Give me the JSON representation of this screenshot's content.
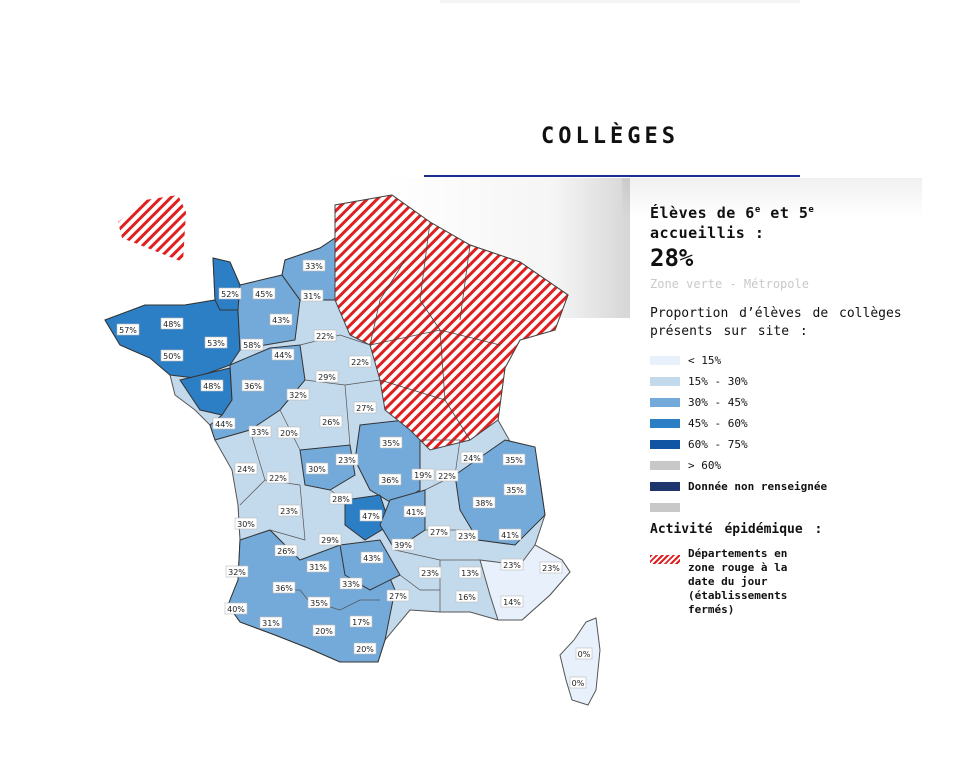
{
  "title": "COLLÈGES",
  "panel": {
    "heading_pre": "Élèves de 6",
    "heading_sup1": "e",
    "heading_mid": " et 5",
    "heading_sup2": "e",
    "heading_post": " accueillis :",
    "value": "28%",
    "zone": "Zone verte - Métropole",
    "proportion_title": "Proportion d’élèves de collèges présents sur site :",
    "legend": [
      {
        "label": "< 15%",
        "color": "#e8f1fb"
      },
      {
        "label": "15% - 30%",
        "color": "#c3d9ec"
      },
      {
        "label": "30% - 45%",
        "color": "#74aad9"
      },
      {
        "label": "45% - 60%",
        "color": "#2d7fc5"
      },
      {
        "label": "60% - 75%",
        "color": "#0f55a3"
      },
      {
        "label": "> 60%",
        "color": "#c8c8c8"
      },
      {
        "label": "Donnée non renseignée",
        "color": "#1e356e"
      },
      {
        "label": "",
        "color": "#c8c8c8"
      }
    ],
    "activity_title": "Activité épidémique :",
    "red_zone_text": "Départements en zone rouge à la date du jour (établissements fermés)"
  },
  "map": {
    "labels": [
      {
        "text": "33%"
      },
      {
        "text": "52%"
      },
      {
        "text": "45%"
      },
      {
        "text": "31%"
      },
      {
        "text": "57%"
      },
      {
        "text": "48%"
      },
      {
        "text": "43%"
      },
      {
        "text": "22%"
      },
      {
        "text": "53%"
      },
      {
        "text": "58%"
      },
      {
        "text": "50%"
      },
      {
        "text": "44%"
      },
      {
        "text": "22%"
      },
      {
        "text": "48%"
      },
      {
        "text": "36%"
      },
      {
        "text": "29%"
      },
      {
        "text": "32%"
      },
      {
        "text": "27%"
      },
      {
        "text": "44%"
      },
      {
        "text": "33%"
      },
      {
        "text": "20%"
      },
      {
        "text": "26%"
      },
      {
        "text": "35%"
      },
      {
        "text": "24%"
      },
      {
        "text": "35%"
      },
      {
        "text": "24%"
      },
      {
        "text": "22%"
      },
      {
        "text": "30%"
      },
      {
        "text": "23%"
      },
      {
        "text": "19%"
      },
      {
        "text": "22%"
      },
      {
        "text": "36%"
      },
      {
        "text": "35%"
      },
      {
        "text": "28%"
      },
      {
        "text": "38%"
      },
      {
        "text": "23%"
      },
      {
        "text": "30%"
      },
      {
        "text": "47%"
      },
      {
        "text": "41%"
      },
      {
        "text": "27%"
      },
      {
        "text": "23%"
      },
      {
        "text": "41%"
      },
      {
        "text": "29%"
      },
      {
        "text": "26%"
      },
      {
        "text": "43%"
      },
      {
        "text": "39%"
      },
      {
        "text": "31%"
      },
      {
        "text": "23%"
      },
      {
        "text": "13%"
      },
      {
        "text": "23%"
      },
      {
        "text": "23%"
      },
      {
        "text": "32%"
      },
      {
        "text": "36%"
      },
      {
        "text": "33%"
      },
      {
        "text": "27%"
      },
      {
        "text": "16%"
      },
      {
        "text": "14%"
      },
      {
        "text": "35%"
      },
      {
        "text": "40%"
      },
      {
        "text": "31%"
      },
      {
        "text": "20%"
      },
      {
        "text": "17%"
      },
      {
        "text": "20%"
      },
      {
        "text": "0%"
      },
      {
        "text": "0%"
      }
    ]
  }
}
